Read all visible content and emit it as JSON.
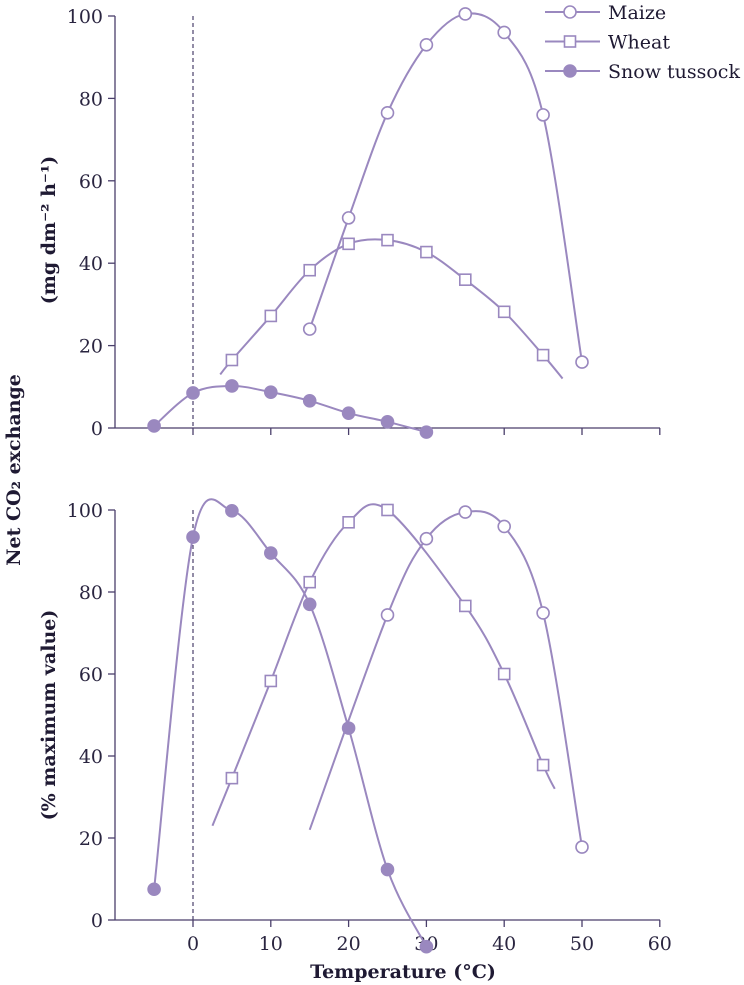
{
  "chart_data": [
    {
      "type": "line",
      "panel": "top",
      "ylabel_unit": "(mg dm⁻² h⁻¹)",
      "ylim": [
        0,
        100
      ],
      "xlim": [
        -10,
        60
      ],
      "yticks": [
        0,
        20,
        40,
        60,
        80,
        100
      ],
      "xticks": [
        0,
        10,
        20,
        30,
        40,
        50,
        60
      ],
      "series": [
        {
          "name": "Maize",
          "marker": "open-circle",
          "x": [
            15,
            20,
            25,
            30,
            35,
            40,
            45,
            50
          ],
          "y": [
            24,
            51,
            76.5,
            93,
            100.5,
            96,
            76,
            16
          ],
          "fit_start": null,
          "fit_end": null
        },
        {
          "name": "Wheat",
          "marker": "open-square",
          "x": [
            5,
            10,
            15,
            20,
            25,
            30,
            35,
            40,
            45
          ],
          "y": [
            16.5,
            27.2,
            38.3,
            44.7,
            45.6,
            42.7,
            36,
            28.2,
            17.7
          ],
          "fit_start": [
            3.5,
            13
          ],
          "fit_end": [
            47.5,
            12
          ]
        },
        {
          "name": "Snow tussock",
          "marker": "filled-circle",
          "x": [
            -5,
            0,
            5,
            10,
            15,
            20,
            25,
            30
          ],
          "y": [
            0.5,
            8.5,
            10.2,
            8.7,
            6.6,
            3.6,
            1.5,
            -1
          ],
          "fit_start": null,
          "fit_end": null
        }
      ]
    },
    {
      "type": "line",
      "panel": "bottom",
      "ylabel_unit": "(% maximum value)",
      "ylim": [
        0,
        100
      ],
      "xlim": [
        -10,
        60
      ],
      "yticks": [
        0,
        20,
        40,
        60,
        80,
        100
      ],
      "xticks": [
        0,
        10,
        20,
        30,
        40,
        50,
        60
      ],
      "series": [
        {
          "name": "Maize",
          "marker": "open-circle",
          "x": [
            25,
            30,
            35,
            40,
            45,
            50
          ],
          "y": [
            74.4,
            93,
            99.5,
            96,
            74.9,
            17.8
          ],
          "fit_start": [
            15,
            22
          ],
          "fit_end": null
        },
        {
          "name": "Wheat",
          "marker": "open-square",
          "x": [
            5,
            10,
            15,
            20,
            25,
            35,
            40,
            45
          ],
          "y": [
            34.6,
            58.3,
            82.4,
            97,
            100,
            76.6,
            60,
            37.8
          ],
          "fit_start": [
            2.5,
            23
          ],
          "fit_end": [
            46.5,
            32
          ]
        },
        {
          "name": "Snow tussock",
          "marker": "filled-circle",
          "x": [
            -5,
            0,
            5,
            10,
            15,
            20,
            25,
            30
          ],
          "y": [
            7.5,
            93.4,
            99.8,
            89.5,
            77,
            46.8,
            12.3,
            -6.5
          ],
          "fit_start": null,
          "fit_end": null
        }
      ]
    }
  ],
  "title": "",
  "ylabel": "Net CO₂ exchange",
  "xlabel": "Temperature (°C)",
  "legend": {
    "placement": "top-right",
    "entries": [
      "Maize",
      "Wheat",
      "Snow tussock"
    ]
  },
  "colors": {
    "series": "#9a88bf",
    "axis": "#4a3f6b",
    "text": "#1f1a33"
  }
}
